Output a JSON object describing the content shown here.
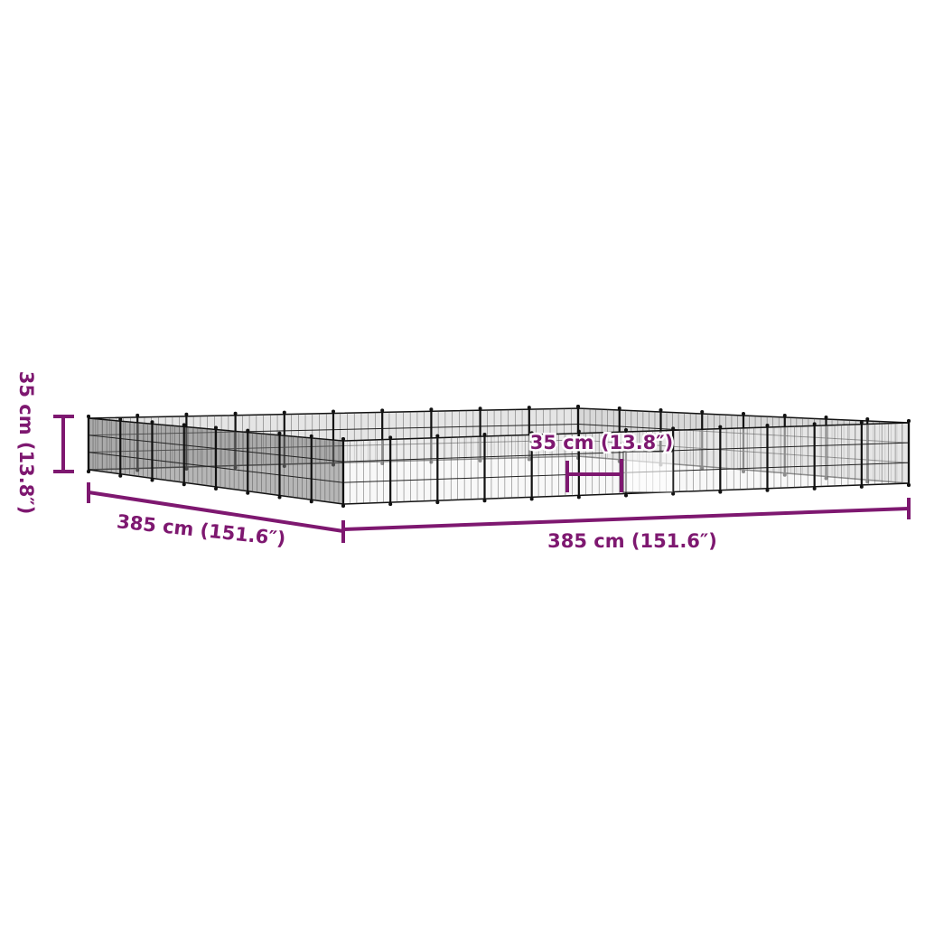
{
  "colors": {
    "dimension": "#7e1870",
    "frame": "#111111",
    "mesh": "#444444",
    "background": "#ffffff"
  },
  "dimensions": {
    "height_label": "35 cm (13.8″)",
    "depth_label": "385 cm (151.6″)",
    "width_label": "385 cm (151.6″)",
    "door_label": "35 cm (13.8″)"
  }
}
